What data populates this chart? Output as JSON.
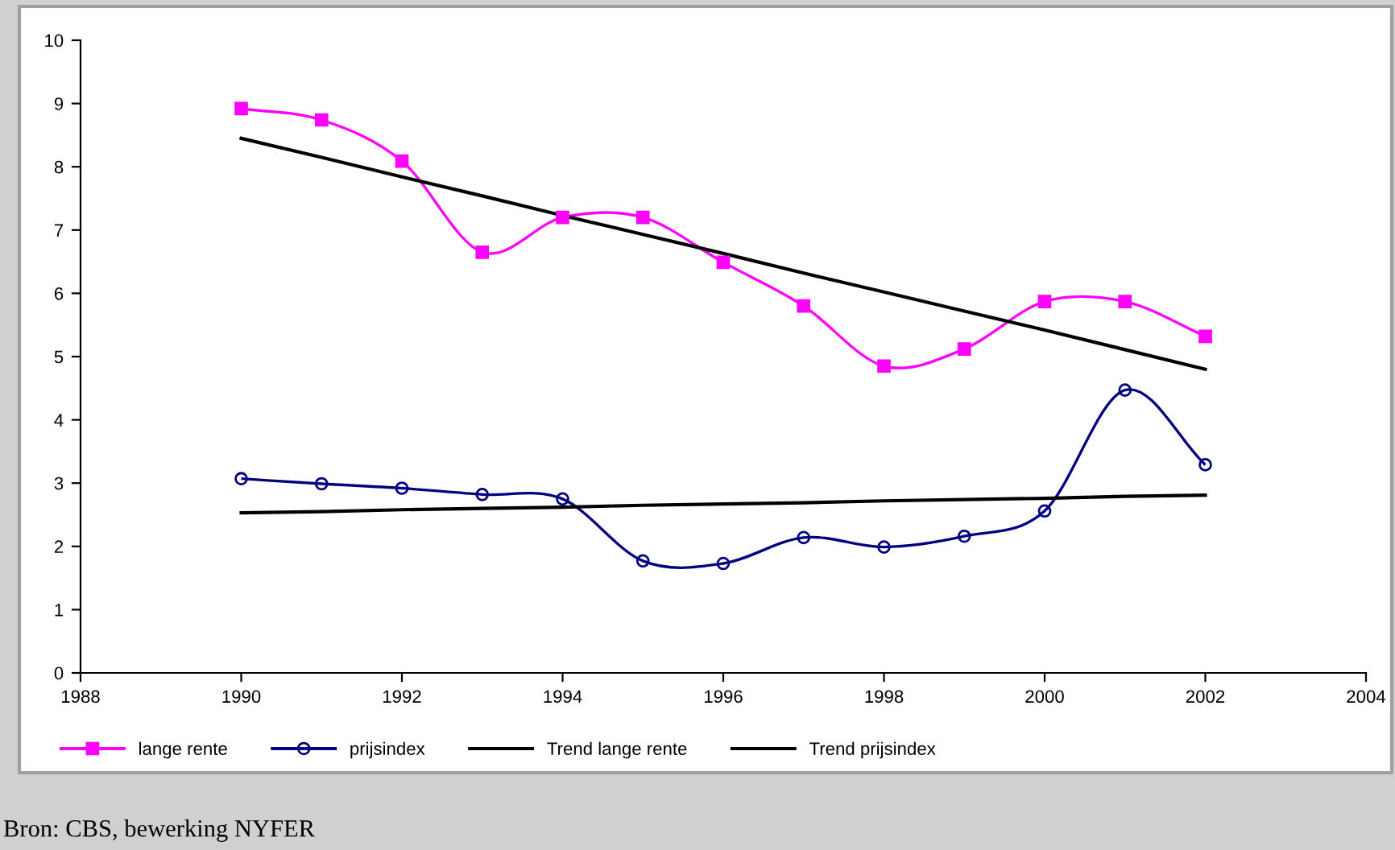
{
  "chart_data": {
    "type": "line",
    "x": [
      1990,
      1991,
      1992,
      1993,
      1994,
      1995,
      1996,
      1997,
      1998,
      1999,
      2000,
      2001,
      2002
    ],
    "series": [
      {
        "name": "lange rente",
        "color": "#ff00ff",
        "marker": "square",
        "values": [
          8.92,
          8.74,
          8.09,
          6.65,
          7.2,
          7.2,
          6.49,
          5.8,
          4.85,
          5.12,
          5.87,
          5.87,
          5.32
        ]
      },
      {
        "name": "prijsindex",
        "color": "#000080",
        "marker": "circle",
        "values": [
          3.07,
          2.99,
          2.92,
          2.82,
          2.75,
          1.77,
          1.73,
          2.14,
          1.99,
          2.16,
          2.56,
          4.47,
          3.29
        ]
      },
      {
        "name": "Trend lange rente",
        "color": "#000000",
        "marker": "none",
        "values": [
          8.45,
          8.15,
          7.84,
          7.54,
          7.23,
          6.93,
          6.63,
          6.32,
          6.02,
          5.72,
          5.42,
          5.11,
          4.8
        ]
      },
      {
        "name": "Trend prijsindex",
        "color": "#000000",
        "marker": "none",
        "values": [
          2.53,
          2.55,
          2.58,
          2.6,
          2.62,
          2.65,
          2.67,
          2.69,
          2.72,
          2.74,
          2.76,
          2.79,
          2.81
        ]
      }
    ],
    "xlim": [
      1988,
      2004
    ],
    "xticks": [
      1988,
      1990,
      1992,
      1994,
      1996,
      1998,
      2000,
      2002,
      2004
    ],
    "ylim": [
      0,
      10
    ],
    "yticks": [
      0,
      1,
      2,
      3,
      4,
      5,
      6,
      7,
      8,
      9,
      10
    ],
    "grid": false,
    "legend": "bottom",
    "line_style": "solid",
    "annotations": [
      "Bron: CBS, bewerking NYFER"
    ]
  }
}
